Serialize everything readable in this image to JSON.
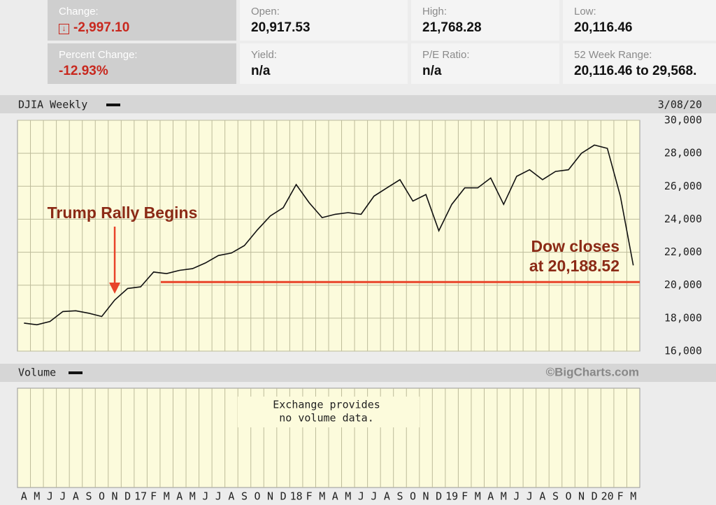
{
  "stats": [
    {
      "label": "Change:",
      "value": "-2,997.10"
    },
    {
      "label": "Open:",
      "value": "20,917.53"
    },
    {
      "label": "High:",
      "value": "21,768.28"
    },
    {
      "label": "Low:",
      "value": "20,116.46"
    },
    {
      "label": "Percent Change:",
      "value": "-12.93%"
    },
    {
      "label": "Yield:",
      "value": "n/a"
    },
    {
      "label": "P/E Ratio:",
      "value": "n/a"
    },
    {
      "label": "52 Week Range:",
      "value": "20,116.46 to 29,568."
    }
  ],
  "chart_data": {
    "type": "line",
    "title": "DJIA Weekly",
    "date": "3/08/20",
    "color": "#111111",
    "categories": [
      "A",
      "M",
      "J",
      "J",
      "A",
      "S",
      "O",
      "N",
      "D",
      "17",
      "F",
      "M",
      "A",
      "M",
      "J",
      "J",
      "A",
      "S",
      "O",
      "N",
      "D",
      "18",
      "F",
      "M",
      "A",
      "M",
      "J",
      "J",
      "A",
      "S",
      "O",
      "N",
      "D",
      "19",
      "F",
      "M",
      "A",
      "M",
      "J",
      "J",
      "A",
      "S",
      "O",
      "N",
      "D",
      "20",
      "F",
      "M"
    ],
    "values": [
      17700,
      17600,
      17800,
      18400,
      18450,
      18300,
      18100,
      19100,
      19800,
      19900,
      20800,
      20700,
      20900,
      21000,
      21350,
      21800,
      21950,
      22400,
      23350,
      24200,
      24700,
      26100,
      25000,
      24100,
      24300,
      24400,
      24300,
      25400,
      25900,
      26400,
      25100,
      25500,
      23300,
      24900,
      25900,
      25900,
      26500,
      24900,
      26600,
      27000,
      26400,
      26900,
      27000,
      28000,
      28500,
      28300,
      25400,
      21200
    ],
    "ylim": [
      16000,
      30000
    ],
    "yticks": [
      {
        "value": 16000,
        "label": "16,000"
      },
      {
        "value": 18000,
        "label": "18,000"
      },
      {
        "value": 20000,
        "label": "20,000"
      },
      {
        "value": 22000,
        "label": "22,000"
      },
      {
        "value": 24000,
        "label": "24,000"
      },
      {
        "value": 26000,
        "label": "26,000"
      },
      {
        "value": 28000,
        "label": "28,000"
      },
      {
        "value": 30000,
        "label": "30,000"
      }
    ],
    "grid": true,
    "annotations": [
      {
        "text": "Trump Rally Begins"
      },
      {
        "lines": [
          "Dow closes",
          "at 20,188.52"
        ],
        "value": 20188.52,
        "color": "#e8442a"
      }
    ]
  },
  "volume": {
    "title": "Volume",
    "credit": "©BigCharts.com",
    "message": [
      "Exchange provides",
      "no volume data."
    ]
  }
}
